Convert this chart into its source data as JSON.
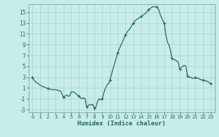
{
  "title": "",
  "xlabel": "Humidex (Indice chaleur)",
  "bg_color": "#c8ece8",
  "grid_color": "#b0d4ce",
  "line_color": "#1a6b5a",
  "marker_color": "#1a6b5a",
  "xlim": [
    -0.5,
    23.5
  ],
  "ylim": [
    -3.5,
    16.5
  ],
  "yticks": [
    -3,
    -1,
    1,
    3,
    5,
    7,
    9,
    11,
    13,
    15
  ],
  "xticks": [
    0,
    1,
    2,
    3,
    4,
    5,
    6,
    7,
    8,
    9,
    10,
    11,
    12,
    13,
    14,
    15,
    16,
    17,
    18,
    19,
    20,
    21,
    22,
    23
  ],
  "x": [
    0,
    0.2,
    0.5,
    0.8,
    1.0,
    1.3,
    1.5,
    1.8,
    2.0,
    2.3,
    2.5,
    2.8,
    3.0,
    3.2,
    3.5,
    3.7,
    4.0,
    4.2,
    4.4,
    4.6,
    4.8,
    5.0,
    5.2,
    5.4,
    5.6,
    5.8,
    6.0,
    6.2,
    6.4,
    6.6,
    6.8,
    7.0,
    7.2,
    7.4,
    7.6,
    7.8,
    8.0,
    8.2,
    8.4,
    8.6,
    8.8,
    9.0,
    9.3,
    9.6,
    9.9,
    10.0,
    10.3,
    10.6,
    11.0,
    11.3,
    11.6,
    12.0,
    12.3,
    12.6,
    13.0,
    13.3,
    13.6,
    14.0,
    14.3,
    14.6,
    15.0,
    15.3,
    15.5,
    15.8,
    16.0,
    16.3,
    16.5,
    16.8,
    17.0,
    17.2,
    17.4,
    17.6,
    17.8,
    18.0,
    18.2,
    18.4,
    18.6,
    18.8,
    19.0,
    19.2,
    19.4,
    19.6,
    19.8,
    20.0,
    20.2,
    20.4,
    20.6,
    20.8,
    21.0,
    21.2,
    21.4,
    21.6,
    21.8,
    22.0,
    22.2,
    22.4,
    22.6,
    22.8,
    23.0
  ],
  "y": [
    3.0,
    2.5,
    2.0,
    1.8,
    1.5,
    1.3,
    1.2,
    1.0,
    0.9,
    0.8,
    0.7,
    0.7,
    0.7,
    0.6,
    0.5,
    0.3,
    -0.7,
    -0.5,
    -0.3,
    -0.5,
    -0.5,
    0.3,
    0.3,
    0.2,
    0.0,
    -0.3,
    -0.5,
    -0.8,
    -1.0,
    -0.8,
    -1.0,
    -2.5,
    -2.3,
    -2.0,
    -2.2,
    -2.0,
    -2.8,
    -2.5,
    -1.5,
    -1.0,
    -1.2,
    -1.0,
    0.5,
    1.5,
    2.0,
    2.5,
    4.0,
    5.5,
    7.5,
    8.5,
    9.5,
    10.8,
    11.5,
    12.0,
    13.0,
    13.5,
    13.8,
    14.2,
    14.5,
    14.8,
    15.5,
    15.8,
    16.0,
    16.0,
    16.0,
    15.5,
    14.5,
    13.5,
    13.0,
    11.0,
    9.5,
    9.0,
    8.0,
    6.5,
    6.3,
    6.2,
    6.0,
    5.8,
    4.5,
    4.8,
    5.0,
    5.2,
    5.0,
    3.2,
    3.0,
    3.0,
    2.8,
    2.8,
    3.0,
    2.8,
    2.8,
    2.6,
    2.5,
    2.5,
    2.4,
    2.3,
    2.2,
    2.0,
    1.8
  ],
  "marker_x": [
    0,
    2,
    4,
    6,
    7,
    8,
    9,
    10,
    11,
    12,
    13,
    14,
    15,
    16,
    17,
    18,
    19,
    20,
    21,
    22,
    23
  ],
  "marker_y": [
    3.0,
    0.9,
    -0.7,
    -0.5,
    -2.5,
    -2.8,
    -1.0,
    2.5,
    7.5,
    10.8,
    13.0,
    14.2,
    15.5,
    16.0,
    13.0,
    6.5,
    4.5,
    3.2,
    3.0,
    2.5,
    1.8
  ]
}
